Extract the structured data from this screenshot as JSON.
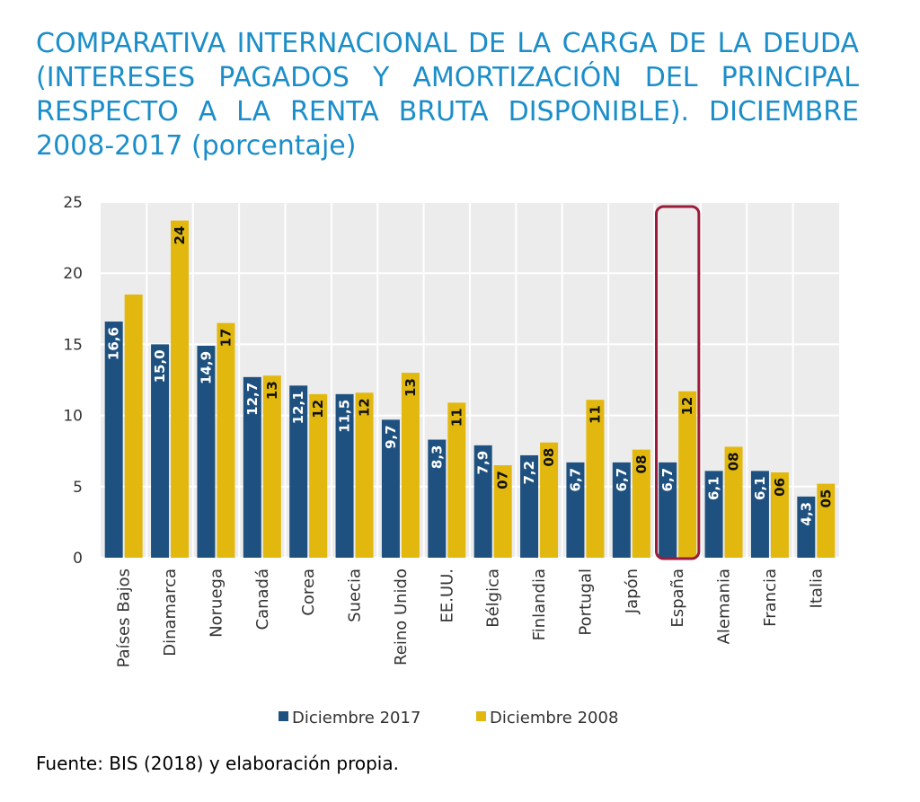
{
  "title": "COMPARATIVA INTERNACIONAL DE LA CARGA DE LA DEUDA (INTERESES PAGADOS Y AMORTIZACIÓN DEL PRINCIPAL RESPECTO A LA RENTA BRUTA DISPONIBLE). DICIEMBRE 2008-2017 (porcentaje)",
  "source": "Fuente: BIS (2018) y elaboración propia.",
  "colors": {
    "series_2017": "#1f5180",
    "series_2008": "#e2b80f",
    "title": "#1b8ec9",
    "plot_bg": "#ececec",
    "highlight_box": "#9b1b3a"
  },
  "chart_data": {
    "type": "bar",
    "categories": [
      "Países Bajos",
      "Dinamarca",
      "Noruega",
      "Canadá",
      "Corea",
      "Suecia",
      "Reino Unido",
      "EE.UU.",
      "Bélgica",
      "Finlandia",
      "Portugal",
      "Japón",
      "España",
      "Alemania",
      "Francia",
      "Italia"
    ],
    "series": [
      {
        "name": "Diciembre 2017",
        "values": [
          16.6,
          15.0,
          14.9,
          12.7,
          12.1,
          11.5,
          9.7,
          8.3,
          7.9,
          7.2,
          6.7,
          6.7,
          6.7,
          6.1,
          6.1,
          4.3
        ],
        "labels": [
          "16,6",
          "15,0",
          "14,9",
          "12,7",
          "12,1",
          "11,5",
          "9,7",
          "8,3",
          "7,9",
          "7,2",
          "6,7",
          "6,7",
          "6,7",
          "6,1",
          "6,1",
          "4,3"
        ]
      },
      {
        "name": "Diciembre 2008",
        "values": [
          18.5,
          23.7,
          16.5,
          12.8,
          11.5,
          11.6,
          13.0,
          10.9,
          6.5,
          8.1,
          11.1,
          7.6,
          11.7,
          7.8,
          6.0,
          5.2
        ],
        "labels": [
          "",
          "24",
          "17",
          "13",
          "12",
          "12",
          "13",
          "11",
          "07",
          "08",
          "11",
          "08",
          "12",
          "08",
          "06",
          "05"
        ]
      }
    ],
    "ylim": [
      0,
      25
    ],
    "yticks": [
      0,
      5,
      10,
      15,
      20,
      25
    ],
    "grid": true,
    "legend": "bottom",
    "highlight_category": "España"
  }
}
